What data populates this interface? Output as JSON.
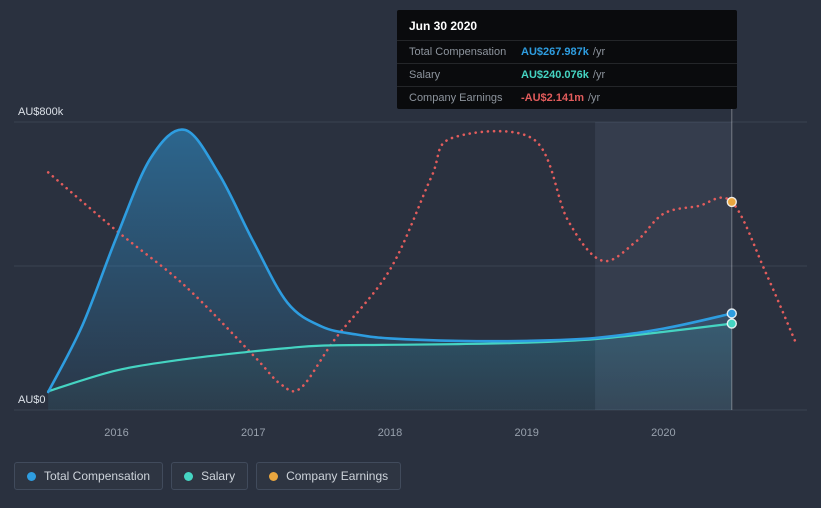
{
  "tooltip": {
    "date": "Jun 30 2020",
    "rows": [
      {
        "label": "Total Compensation",
        "value": "AU$267.987k",
        "suffix": "/yr",
        "color": "#2e9de0"
      },
      {
        "label": "Salary",
        "value": "AU$240.076k",
        "suffix": "/yr",
        "color": "#45d4c2"
      },
      {
        "label": "Company Earnings",
        "value": "-AU$2.141m",
        "suffix": "/yr",
        "color": "#e25c5c"
      }
    ]
  },
  "legend": [
    {
      "label": "Total Compensation",
      "color": "#2e9de0"
    },
    {
      "label": "Salary",
      "color": "#45d4c2"
    },
    {
      "label": "Company Earnings",
      "color": "#e9a63f"
    }
  ],
  "chart_data": {
    "type": "line",
    "x_unit": "year",
    "xlim": [
      2015.25,
      2021.05
    ],
    "ylim": [
      0,
      800
    ],
    "y_unit": "AU$ thousands (axis)",
    "y_ticks": [
      {
        "value": 800,
        "label": "AU$800k"
      },
      {
        "value": 0,
        "label": "AU$0"
      }
    ],
    "grid_values": [
      800,
      400,
      0
    ],
    "x_ticks": [
      2016,
      2017,
      2018,
      2019,
      2020
    ],
    "highlight_band_years": [
      2019.5,
      2020.5
    ],
    "marker_year": 2020.5,
    "marker_date_label": "Jun 30 2020",
    "legend_position": "bottom-left",
    "grid": true,
    "series": [
      {
        "name": "Total Compensation",
        "color": "#2e9de0",
        "style": "solid",
        "area": true,
        "area_opacity": [
          0.5,
          0.05
        ],
        "value_at_marker": "AU$267.987k /yr",
        "points": [
          [
            2015.5,
            50
          ],
          [
            2015.75,
            235
          ],
          [
            2016.0,
            480
          ],
          [
            2016.25,
            700
          ],
          [
            2016.5,
            778
          ],
          [
            2016.75,
            655
          ],
          [
            2017.0,
            468
          ],
          [
            2017.25,
            298
          ],
          [
            2017.5,
            232
          ],
          [
            2017.75,
            210
          ],
          [
            2018.0,
            199
          ],
          [
            2018.5,
            192
          ],
          [
            2019.0,
            192
          ],
          [
            2019.5,
            200
          ],
          [
            2020.0,
            226
          ],
          [
            2020.5,
            268
          ]
        ]
      },
      {
        "name": "Salary",
        "color": "#45d4c2",
        "style": "solid",
        "area": true,
        "area_opacity": [
          0.22,
          0.04
        ],
        "value_at_marker": "AU$240.076k /yr",
        "points": [
          [
            2015.5,
            52
          ],
          [
            2016.0,
            110
          ],
          [
            2016.5,
            141
          ],
          [
            2017.0,
            163
          ],
          [
            2017.25,
            172
          ],
          [
            2017.5,
            179
          ],
          [
            2018.0,
            181
          ],
          [
            2018.5,
            183
          ],
          [
            2019.0,
            187
          ],
          [
            2019.5,
            197
          ],
          [
            2020.0,
            217
          ],
          [
            2020.5,
            240
          ]
        ]
      },
      {
        "name": "Company Earnings",
        "color": "#e25c5c",
        "marker_color": "#e9a63f",
        "style": "dotted",
        "area": false,
        "value_at_marker": "-AU$2.141m /yr",
        "scale_note": "plotted on separate hidden scale; point values are axis-equivalent positions",
        "points": [
          [
            2015.5,
            660
          ],
          [
            2016.0,
            498
          ],
          [
            2016.5,
            345
          ],
          [
            2017.0,
            152
          ],
          [
            2017.2,
            72
          ],
          [
            2017.35,
            62
          ],
          [
            2017.6,
            198
          ],
          [
            2018.0,
            390
          ],
          [
            2018.3,
            645
          ],
          [
            2018.45,
            755
          ],
          [
            2019.05,
            752
          ],
          [
            2019.3,
            528
          ],
          [
            2019.55,
            415
          ],
          [
            2019.8,
            468
          ],
          [
            2020.0,
            545
          ],
          [
            2020.25,
            566
          ],
          [
            2020.5,
            578
          ],
          [
            2020.75,
            380
          ],
          [
            2020.97,
            185
          ]
        ]
      }
    ]
  }
}
